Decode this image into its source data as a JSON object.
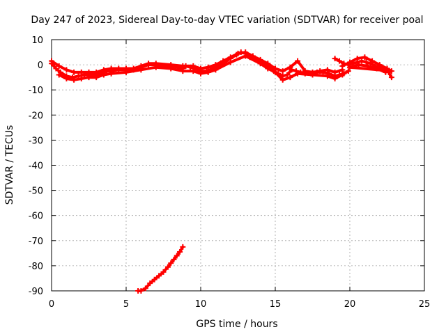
{
  "chart_data": {
    "type": "scatter",
    "title": "Day 247 of 2023, Sidereal Day-to-day VTEC variation (SDTVAR) for receiver poal",
    "xlabel": "GPS time / hours",
    "ylabel": "SDTVAR / TECUs",
    "xlim": [
      0,
      25
    ],
    "ylim": [
      -90,
      10
    ],
    "xticks": [
      0,
      5,
      10,
      15,
      20,
      25
    ],
    "yticks": [
      10,
      0,
      -10,
      -20,
      -30,
      -40,
      -50,
      -60,
      -70,
      -80,
      -90
    ],
    "grid": true,
    "marker": "plus",
    "color": "#ff0000",
    "series": [
      {
        "name": "main",
        "x": [
          0.0,
          0.3,
          0.6,
          1.0,
          1.4,
          1.8,
          2.2,
          2.6,
          3.0,
          3.3,
          3.5,
          3.7,
          4.0,
          4.5,
          5.0,
          5.5,
          6.0,
          6.5,
          7.0,
          7.5,
          8.0,
          8.5,
          8.8,
          9.0,
          9.3,
          9.6,
          10.0,
          10.4,
          10.8,
          11.2,
          11.6,
          12.0,
          12.4,
          12.7,
          13.0,
          13.3,
          13.6,
          14.0,
          14.3,
          14.6,
          14.9,
          15.2,
          15.5,
          15.8,
          16.1,
          16.4,
          16.7,
          17.0,
          17.4,
          17.8,
          18.2,
          18.6,
          19.0,
          19.3,
          19.6,
          19.9
        ],
        "y": [
          0.5,
          -1.5,
          -3.0,
          -4.5,
          -5.0,
          -4.5,
          -4.0,
          -4.0,
          -4.0,
          -3.5,
          -3.0,
          -2.5,
          -2.5,
          -2.0,
          -2.0,
          -2.0,
          -1.0,
          0.0,
          0.0,
          -0.5,
          -0.5,
          -1.0,
          -1.5,
          -0.5,
          -1.0,
          -1.5,
          -2.5,
          -2.5,
          -1.5,
          -0.5,
          1.0,
          2.5,
          4.0,
          5.0,
          4.5,
          3.0,
          2.5,
          1.5,
          0.5,
          -1.0,
          -2.5,
          -3.5,
          -4.5,
          -4.0,
          -2.0,
          -2.5,
          -3.0,
          -3.5,
          -3.5,
          -3.0,
          -3.0,
          -3.5,
          -4.5,
          -4.0,
          -3.5,
          -2.5
        ]
      },
      {
        "name": "main-band-upper",
        "x": [
          0.0,
          0.5,
          1.0,
          1.5,
          2.0,
          2.5,
          3.0,
          3.5,
          4.0,
          4.5,
          5.0,
          5.5,
          6.0,
          6.5,
          7.0,
          8.0,
          8.8,
          9.5,
          10.0,
          10.5,
          11.0,
          11.5,
          12.0,
          12.5,
          13.0,
          13.5,
          14.0,
          14.5,
          15.0,
          15.5,
          16.0,
          16.5,
          17.0,
          17.5,
          18.0,
          18.5,
          19.0,
          19.5
        ],
        "y": [
          1.5,
          -0.5,
          -2.0,
          -3.0,
          -3.0,
          -3.0,
          -3.0,
          -2.0,
          -1.5,
          -1.5,
          -1.5,
          -1.5,
          -0.5,
          0.5,
          0.5,
          0.0,
          -0.5,
          -0.5,
          -1.5,
          -1.0,
          0.0,
          1.5,
          3.0,
          4.5,
          5.0,
          3.5,
          2.0,
          0.5,
          -1.5,
          -2.5,
          -1.0,
          1.5,
          -2.5,
          -3.0,
          -2.5,
          -2.0,
          -3.0,
          -2.0
        ]
      },
      {
        "name": "main-band-lower",
        "x": [
          0.5,
          1.0,
          1.5,
          2.0,
          2.5,
          3.0,
          3.5,
          4.0,
          5.0,
          6.0,
          7.0,
          8.0,
          8.8,
          9.5,
          10.0,
          10.5,
          11.0,
          12.0,
          13.0,
          14.0,
          14.5,
          15.0,
          15.5,
          16.0,
          16.5,
          17.5,
          18.5,
          19.0,
          19.5
        ],
        "y": [
          -4.0,
          -5.5,
          -6.0,
          -5.5,
          -5.0,
          -5.0,
          -4.0,
          -3.5,
          -3.0,
          -2.0,
          -1.0,
          -1.5,
          -2.5,
          -2.5,
          -3.5,
          -3.0,
          -2.0,
          1.0,
          3.5,
          0.5,
          -1.5,
          -3.0,
          -6.0,
          -5.0,
          -3.5,
          -4.0,
          -4.5,
          -5.5,
          -4.0
        ]
      },
      {
        "name": "late",
        "x": [
          19.0,
          19.3,
          19.6,
          19.9,
          20.2,
          20.5,
          20.8,
          21.1,
          21.4,
          21.7,
          22.0,
          22.3,
          22.6,
          22.8
        ],
        "y": [
          2.5,
          1.5,
          0.5,
          0.0,
          0.5,
          1.0,
          1.5,
          1.0,
          0.5,
          -0.5,
          -1.0,
          -2.0,
          -3.0,
          -5.0
        ]
      },
      {
        "name": "late-band",
        "x": [
          19.5,
          20.0,
          20.5,
          21.0,
          21.5,
          22.0,
          22.5,
          22.8,
          20.0,
          20.6,
          21.2,
          21.8,
          22.4
        ],
        "y": [
          -0.5,
          1.0,
          2.5,
          3.0,
          1.5,
          0.0,
          -1.5,
          -2.5,
          -1.0,
          0.0,
          -0.5,
          -1.5,
          -3.0
        ]
      },
      {
        "name": "low",
        "x": [
          5.8,
          6.0,
          6.3,
          6.6,
          6.9,
          7.2,
          7.5,
          7.8,
          8.0,
          8.2,
          8.4,
          8.6,
          8.8
        ],
        "y": [
          -90.0,
          -90.0,
          -89.0,
          -87.0,
          -85.5,
          -84.0,
          -82.5,
          -80.5,
          -79.0,
          -77.5,
          -76.0,
          -74.5,
          -72.5
        ]
      }
    ]
  }
}
